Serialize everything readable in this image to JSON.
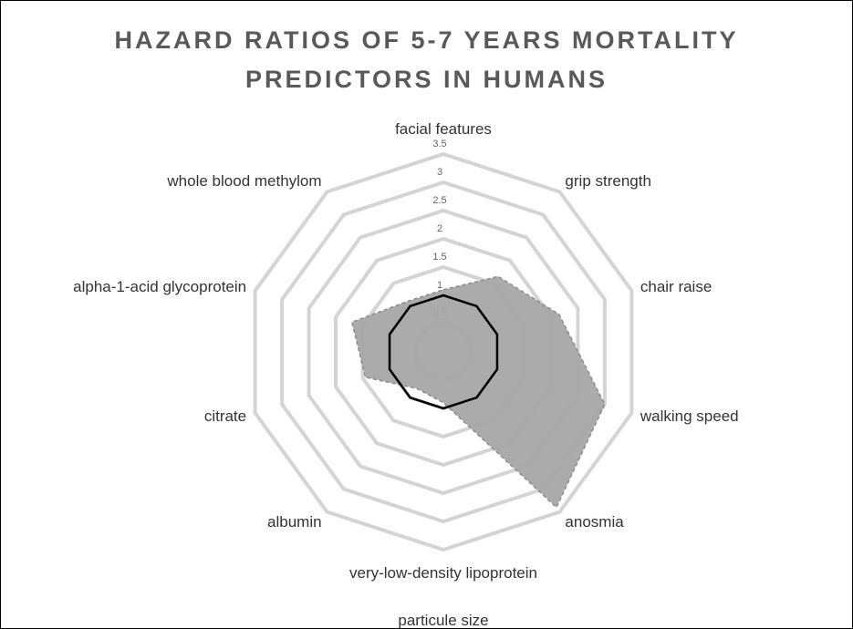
{
  "chart_data": {
    "type": "radar",
    "title": "HAZARD RATIOS OF 5-7 YEARS MORTALITY PREDICTORS IN HUMANS",
    "categories": [
      "facial features",
      "grip strength",
      "chair raise",
      "walking speed",
      "anosmia",
      "very-low-density lipoprotein particule size",
      "albumin",
      "citrate",
      "alpha-1-acid glycoprotein",
      "whole blood methylom"
    ],
    "series": [
      {
        "color": "#a6a6a6",
        "fill": true,
        "values": [
          1.1,
          1.65,
          2.15,
          3.0,
          3.4,
          0.9,
          0.8,
          1.45,
          1.7,
          1.1
        ]
      },
      {
        "color": "#000000",
        "fill": false,
        "values": [
          1,
          1,
          1,
          1,
          1,
          1,
          1,
          1,
          1,
          1
        ]
      }
    ],
    "rlim": [
      0,
      3.5
    ],
    "rticks": [
      0.5,
      1,
      1.5,
      2,
      2.5,
      3,
      3.5
    ],
    "grid": true
  }
}
